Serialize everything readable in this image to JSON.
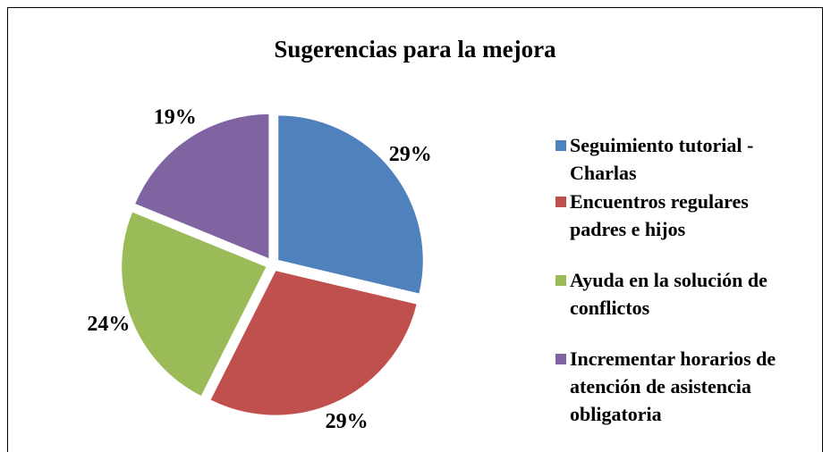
{
  "chart_data": {
    "type": "pie",
    "title": "Sugerencias para la mejora",
    "categories": [
      "Seguimiento tutorial - Charlas",
      "Encuentros regulares padres e hijos",
      "Ayuda en la solución de conflictos",
      "Incrementar horarios de atención de asistencia obligatoria"
    ],
    "values": [
      29,
      29,
      24,
      19
    ],
    "value_labels": [
      "29%",
      "29%",
      "24%",
      "19%"
    ],
    "colors": [
      "#4f81bd",
      "#c0504d",
      "#9bbb59",
      "#8064a2"
    ],
    "legend": "right"
  }
}
